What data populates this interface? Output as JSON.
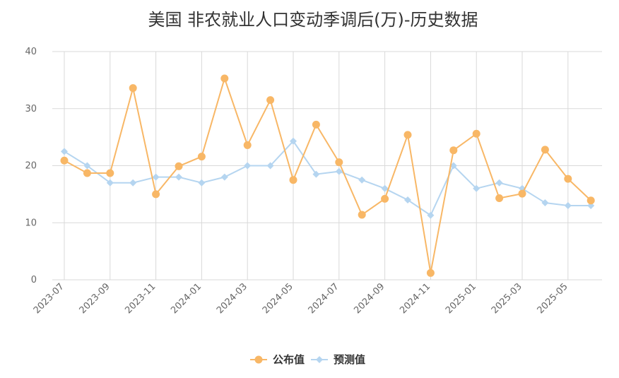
{
  "chart_data": {
    "type": "line",
    "title": "美国 非农就业人口变动季调后(万)-历史数据",
    "xlabel": "",
    "ylabel": "",
    "ylim": [
      0,
      40
    ],
    "yticks": [
      0,
      10,
      20,
      30,
      40
    ],
    "grid": true,
    "legend_position": "bottom-center",
    "x": [
      "2023-07",
      "2023-08",
      "2023-09",
      "2023-10",
      "2023-11",
      "2023-12",
      "2024-01",
      "2024-02",
      "2024-03",
      "2024-04",
      "2024-05",
      "2024-06",
      "2024-07",
      "2024-08",
      "2024-09",
      "2024-10",
      "2024-11",
      "2024-12",
      "2025-01",
      "2025-02",
      "2025-03",
      "2025-04",
      "2025-05",
      "2025-06"
    ],
    "xtick_labels": [
      "2023-07",
      "2023-09",
      "2023-11",
      "2024-01",
      "2024-03",
      "2024-05",
      "2024-07",
      "2024-09",
      "2024-11",
      "2025-01",
      "2025-03",
      "2025-05"
    ],
    "series": [
      {
        "name": "公布值",
        "color": "#f8b766",
        "marker": "circle",
        "values": [
          20.9,
          18.7,
          18.7,
          33.6,
          15.0,
          19.9,
          21.6,
          35.3,
          23.6,
          31.5,
          17.5,
          27.2,
          20.6,
          11.4,
          14.2,
          25.4,
          1.2,
          22.7,
          25.6,
          14.3,
          15.1,
          22.8,
          17.7,
          13.9
        ]
      },
      {
        "name": "预测值",
        "color": "#b5d5f0",
        "marker": "diamond",
        "values": [
          22.5,
          20.0,
          17.0,
          17.0,
          18.0,
          18.0,
          17.0,
          18.0,
          20.0,
          20.0,
          24.3,
          18.5,
          19.0,
          17.5,
          16.0,
          14.0,
          11.3,
          20.0,
          16.0,
          17.0,
          16.0,
          13.5,
          13.0,
          13.0
        ]
      }
    ]
  }
}
